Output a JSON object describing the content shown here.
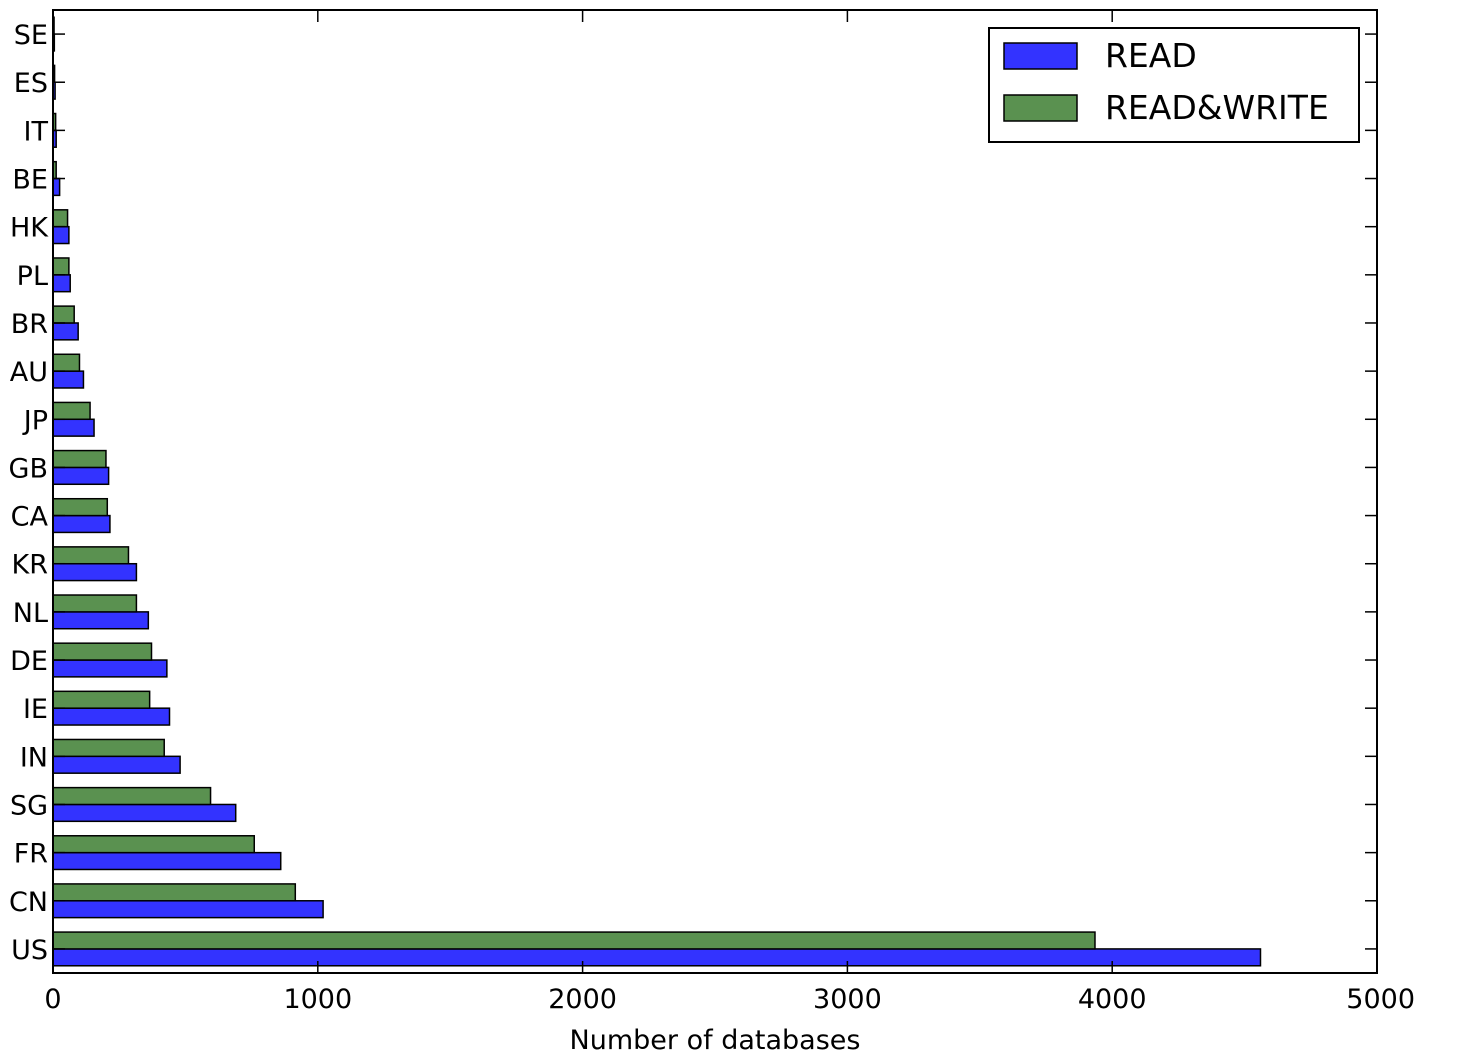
{
  "chart_data": {
    "type": "bar",
    "orientation": "horizontal",
    "categories": [
      "US",
      "CN",
      "FR",
      "SG",
      "IN",
      "IE",
      "DE",
      "NL",
      "KR",
      "CA",
      "GB",
      "JP",
      "AU",
      "BR",
      "PL",
      "HK",
      "BE",
      "IT",
      "ES",
      "SE"
    ],
    "series": [
      {
        "name": "READ",
        "color": "#3333ff",
        "values": [
          4560,
          1020,
          860,
          690,
          480,
          440,
          430,
          360,
          315,
          215,
          210,
          155,
          115,
          95,
          65,
          60,
          25,
          12,
          8,
          5
        ]
      },
      {
        "name": "READ&WRITE",
        "color": "#5a9150",
        "values": [
          3935,
          915,
          760,
          595,
          420,
          365,
          372,
          315,
          285,
          205,
          200,
          140,
          100,
          80,
          60,
          55,
          12,
          10,
          6,
          4
        ]
      }
    ],
    "xlabel": "Number of databases",
    "ylabel": "",
    "xlim": [
      0,
      5000
    ],
    "xticks": [
      "0",
      "1000",
      "2000",
      "3000",
      "4000",
      "5000"
    ],
    "grid": false,
    "legend_position": "top-right"
  }
}
